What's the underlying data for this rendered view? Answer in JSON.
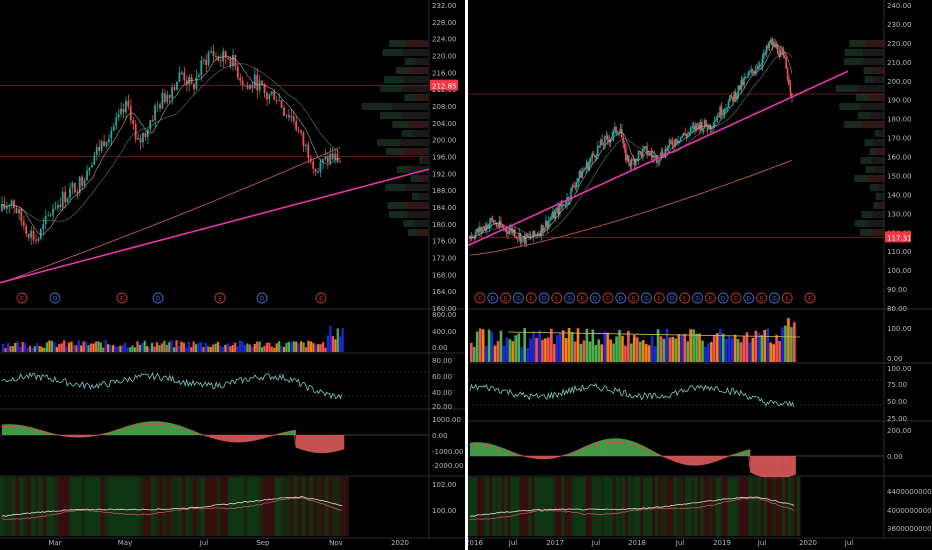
{
  "colors": {
    "background": "#000000",
    "divider": "#ffffff",
    "up": "#26a69a",
    "down": "#ef5350",
    "trendline": "#e535ab",
    "ma200": "#b05050",
    "ma_light": "#c8c8c8",
    "axis_text": "#b2b5be",
    "price_tag": "#f23645",
    "earnings_marker": "#c0392b",
    "dividend_marker": "#3d6ec9",
    "volume_blue": "#1a2bd6",
    "volume_orange": "#f57f17",
    "histogram_green": "#4caf50",
    "histogram_red": "#e35d5d"
  },
  "chart_data": [
    {
      "type": "candlestick",
      "panel": "left",
      "x_labels": [
        "Mar",
        "May",
        "Jul",
        "Sep",
        "Nov",
        "2020"
      ],
      "price_axis": {
        "ticks": [
          "232.00",
          "228.00",
          "224.00",
          "220.00",
          "216.00",
          "212.00",
          "208.00",
          "204.00",
          "200.00",
          "196.00",
          "192.00",
          "188.00",
          "184.00",
          "180.00",
          "176.00",
          "172.00",
          "168.00",
          "164.00",
          "160.00"
        ],
        "range": [
          160,
          233
        ]
      },
      "last_price_tag": "212.85",
      "price_series": [
        {
          "x": 0,
          "y": 183
        },
        {
          "x": 4,
          "y": 186
        },
        {
          "x": 8,
          "y": 181
        },
        {
          "x": 12,
          "y": 178
        },
        {
          "x": 15,
          "y": 176
        },
        {
          "x": 18,
          "y": 179
        },
        {
          "x": 22,
          "y": 184
        },
        {
          "x": 26,
          "y": 186
        },
        {
          "x": 30,
          "y": 188
        },
        {
          "x": 34,
          "y": 190
        },
        {
          "x": 38,
          "y": 195
        },
        {
          "x": 42,
          "y": 198
        },
        {
          "x": 46,
          "y": 202
        },
        {
          "x": 50,
          "y": 204
        },
        {
          "x": 54,
          "y": 208
        },
        {
          "x": 56,
          "y": 206
        },
        {
          "x": 58,
          "y": 198
        },
        {
          "x": 62,
          "y": 202
        },
        {
          "x": 66,
          "y": 207
        },
        {
          "x": 70,
          "y": 210
        },
        {
          "x": 74,
          "y": 213
        },
        {
          "x": 78,
          "y": 216
        },
        {
          "x": 82,
          "y": 212
        },
        {
          "x": 86,
          "y": 217
        },
        {
          "x": 90,
          "y": 221
        },
        {
          "x": 94,
          "y": 219
        },
        {
          "x": 98,
          "y": 220
        },
        {
          "x": 102,
          "y": 216
        },
        {
          "x": 106,
          "y": 212
        },
        {
          "x": 110,
          "y": 214
        },
        {
          "x": 114,
          "y": 210
        },
        {
          "x": 118,
          "y": 211
        },
        {
          "x": 122,
          "y": 207
        },
        {
          "x": 126,
          "y": 205
        },
        {
          "x": 130,
          "y": 199
        },
        {
          "x": 134,
          "y": 196
        },
        {
          "x": 136,
          "y": 192
        },
        {
          "x": 138,
          "y": 194
        },
        {
          "x": 142,
          "y": 196
        },
        {
          "x": 146,
          "y": 195
        }
      ],
      "trendline": {
        "start": 166,
        "end": 193
      },
      "event_markers": [
        "E",
        "D",
        "E",
        "D",
        "E",
        "D",
        "E"
      ],
      "volume_axis": {
        "ticks": [
          "800.00",
          "400.00",
          "0.00"
        ]
      },
      "oscillator_axis": {
        "ticks": [
          "80.00",
          "60.00",
          "40.00",
          "20.00"
        ]
      },
      "histogram_axis": {
        "ticks": [
          "1000.00",
          "0.00",
          "-1000.00",
          "-2000.00"
        ]
      },
      "bottom_axis": {
        "ticks": [
          "102.00",
          "100.00"
        ]
      }
    },
    {
      "type": "candlestick",
      "panel": "right",
      "x_labels": [
        "2016",
        "Jul",
        "2017",
        "Jul",
        "2018",
        "Jul",
        "2019",
        "Jul",
        "2020",
        "Jul"
      ],
      "price_axis": {
        "ticks": [
          "240.00",
          "230.00",
          "220.00",
          "210.00",
          "200.00",
          "190.00",
          "180.00",
          "170.00",
          "160.00",
          "150.00",
          "140.00",
          "130.00",
          "120.00",
          "110.00",
          "100.00",
          "90.00",
          "80.00"
        ],
        "range": [
          80,
          242
        ]
      },
      "last_price_tag": "117.31",
      "price_series": [
        {
          "x": 0,
          "y": 118
        },
        {
          "x": 6,
          "y": 121
        },
        {
          "x": 12,
          "y": 126
        },
        {
          "x": 18,
          "y": 122
        },
        {
          "x": 24,
          "y": 121
        },
        {
          "x": 30,
          "y": 116
        },
        {
          "x": 36,
          "y": 118
        },
        {
          "x": 42,
          "y": 124
        },
        {
          "x": 48,
          "y": 130
        },
        {
          "x": 54,
          "y": 137
        },
        {
          "x": 60,
          "y": 148
        },
        {
          "x": 66,
          "y": 156
        },
        {
          "x": 72,
          "y": 165
        },
        {
          "x": 78,
          "y": 170
        },
        {
          "x": 84,
          "y": 176
        },
        {
          "x": 86,
          "y": 162
        },
        {
          "x": 90,
          "y": 156
        },
        {
          "x": 94,
          "y": 161
        },
        {
          "x": 98,
          "y": 163
        },
        {
          "x": 104,
          "y": 159
        },
        {
          "x": 110,
          "y": 164
        },
        {
          "x": 116,
          "y": 170
        },
        {
          "x": 122,
          "y": 172
        },
        {
          "x": 128,
          "y": 177
        },
        {
          "x": 134,
          "y": 176
        },
        {
          "x": 140,
          "y": 184
        },
        {
          "x": 146,
          "y": 190
        },
        {
          "x": 152,
          "y": 198
        },
        {
          "x": 158,
          "y": 205
        },
        {
          "x": 164,
          "y": 212
        },
        {
          "x": 168,
          "y": 220
        },
        {
          "x": 172,
          "y": 217
        },
        {
          "x": 176,
          "y": 210
        },
        {
          "x": 180,
          "y": 193
        }
      ],
      "trendline": {
        "start": 113,
        "end": 205
      },
      "event_markers": [
        "E",
        "D",
        "E",
        "D",
        "E",
        "D",
        "E",
        "D",
        "E",
        "D",
        "E",
        "D",
        "E",
        "D",
        "E",
        "D",
        "E",
        "D",
        "E",
        "D",
        "E",
        "D",
        "E",
        "D",
        "E",
        "E"
      ],
      "volume_axis": {
        "ticks": [
          "100.00",
          "0.00"
        ]
      },
      "oscillator_axis": {
        "ticks": [
          "100.00",
          "75.00",
          "50.00",
          "25.00"
        ]
      },
      "histogram_axis": {
        "ticks": [
          "200.00",
          "0.00"
        ]
      },
      "bottom_axis": {
        "ticks": [
          "4400000000.00",
          "4000000000.00",
          "3600000000.00"
        ]
      }
    }
  ]
}
